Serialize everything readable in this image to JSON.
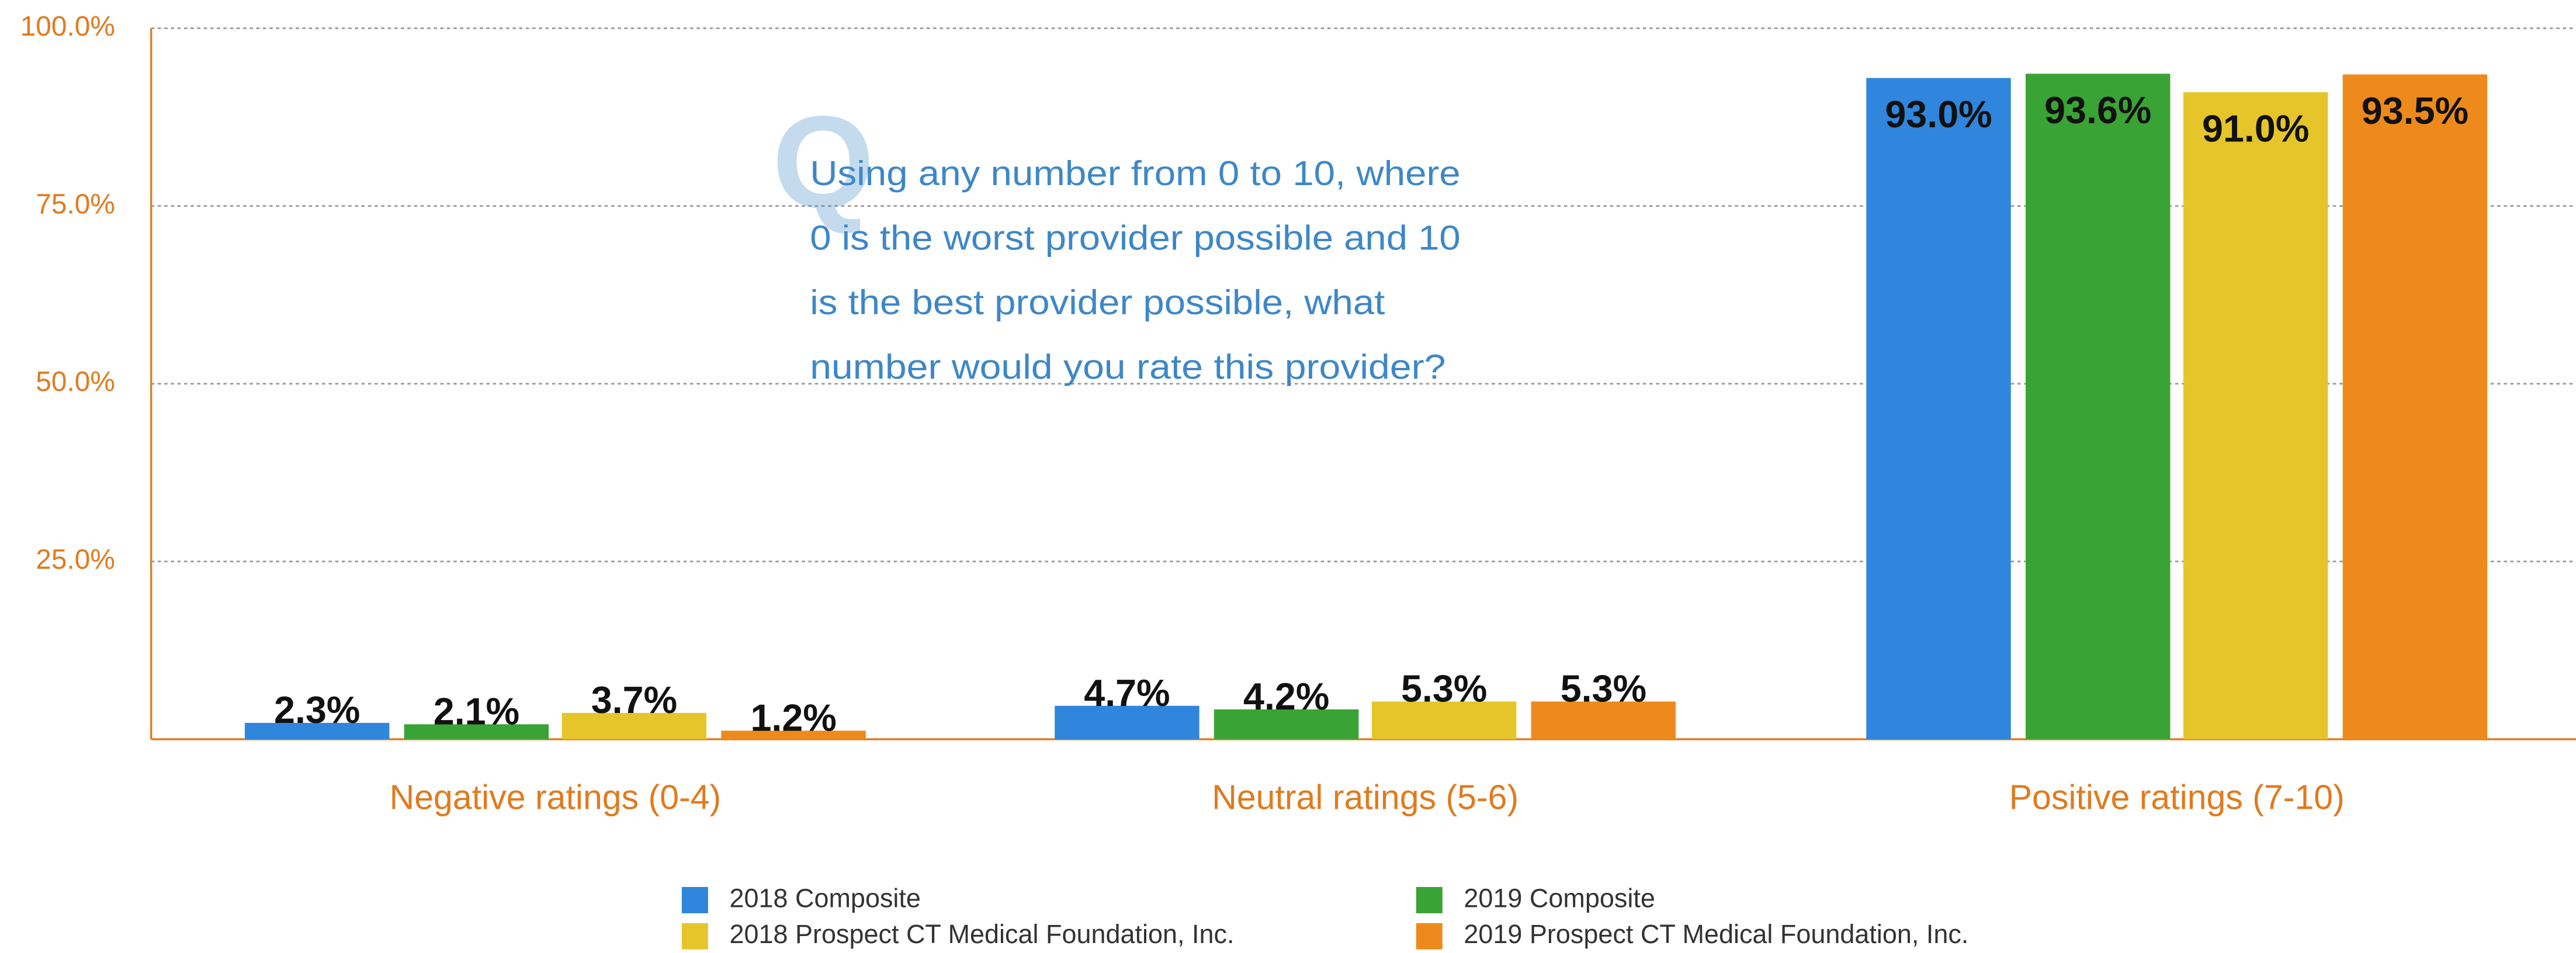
{
  "chart_data": {
    "type": "bar",
    "categories": [
      "Negative ratings (0-4)",
      "Neutral ratings (5-6)",
      "Positive ratings (7-10)"
    ],
    "series": [
      {
        "name": "2018 Composite",
        "color": "#2f86dc",
        "values": [
          2.3,
          4.7,
          93.0
        ],
        "value_labels": [
          "2.3%",
          "4.7%",
          "93.0%"
        ]
      },
      {
        "name": "2019 Composite",
        "color": "#3aa335",
        "values": [
          2.1,
          4.2,
          93.6
        ],
        "value_labels": [
          "2.1%",
          "4.2%",
          "93.6%"
        ]
      },
      {
        "name": "2018 Prospect CT Medical Foundation, Inc.",
        "color": "#e6c52a",
        "values": [
          3.7,
          5.3,
          91.0
        ],
        "value_labels": [
          "3.7%",
          "5.3%",
          "91.0%"
        ]
      },
      {
        "name": "2019 Prospect CT Medical Foundation, Inc.",
        "color": "#ee8a1c",
        "values": [
          1.2,
          5.3,
          93.5
        ],
        "value_labels": [
          "1.2%",
          "5.3%",
          "93.5%"
        ]
      }
    ],
    "ylim": [
      0,
      100
    ],
    "yticks": [
      {
        "value": 25,
        "label": "25.0%"
      },
      {
        "value": 50,
        "label": "50.0%"
      },
      {
        "value": 75,
        "label": "75.0%"
      },
      {
        "value": 100,
        "label": "100.0%"
      }
    ],
    "grid": true,
    "legend": "bottom",
    "annotation": {
      "mark": "Q",
      "lines": [
        "Using any number from 0 to 10, where",
        "0 is the worst provider possible and 10",
        "is the best provider possible, what",
        "number would you rate this provider?"
      ]
    }
  }
}
